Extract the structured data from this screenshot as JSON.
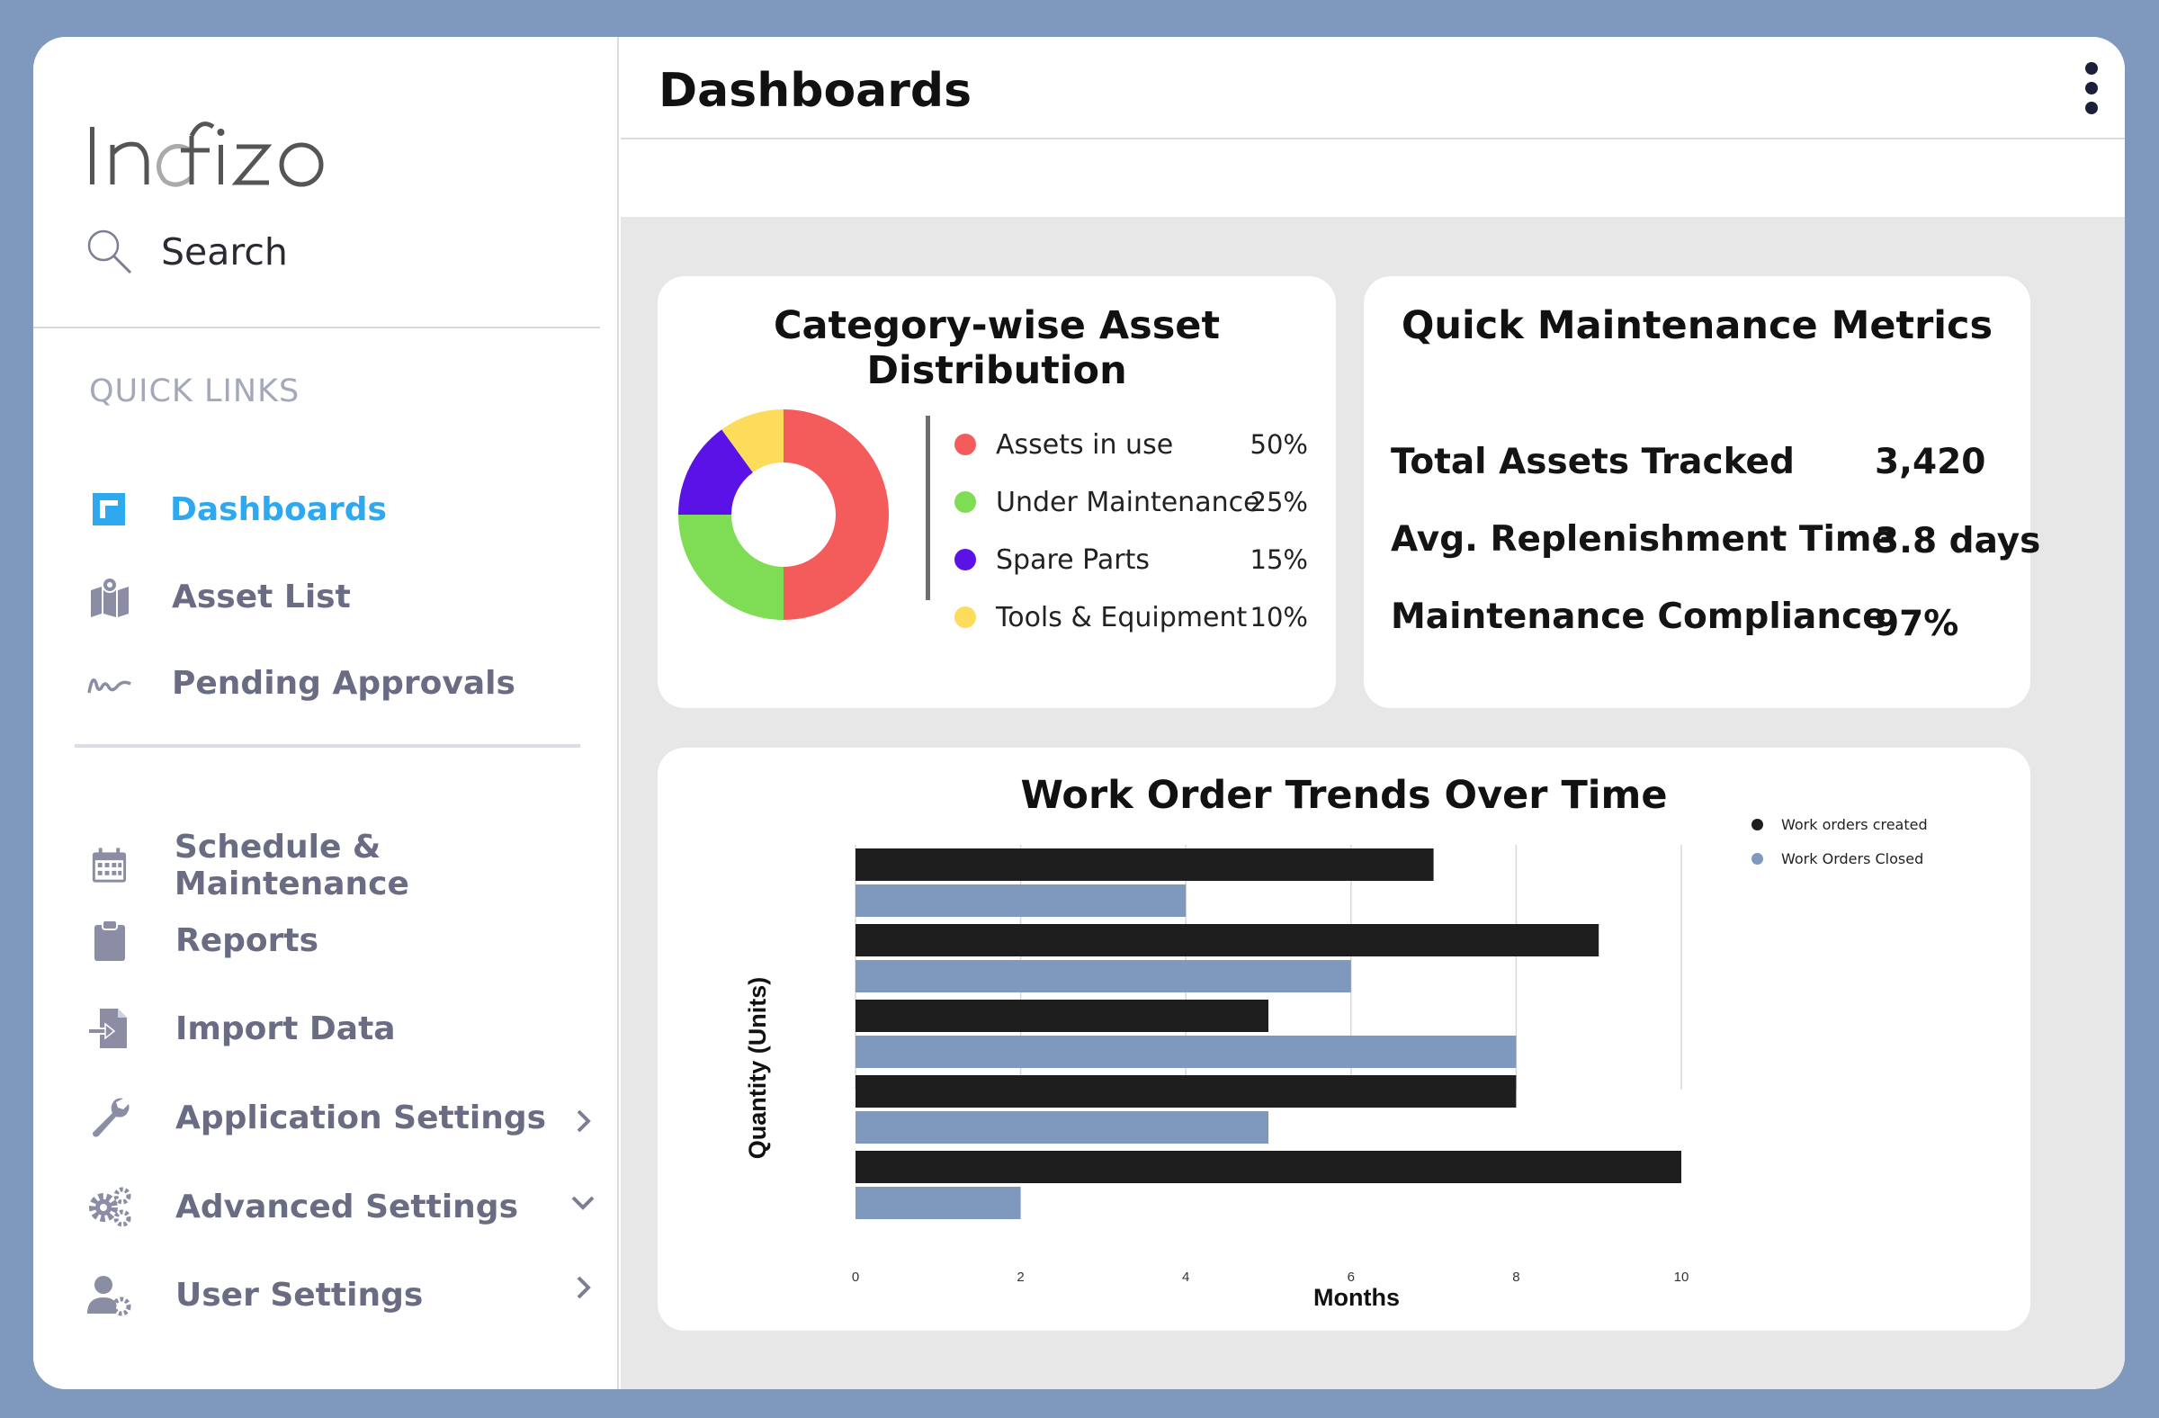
{
  "app": {
    "brand": "Indfizo"
  },
  "sidebar": {
    "search_label": "Search",
    "section_title": "QUICK LINKS",
    "quick_links": [
      {
        "label": "Dashboards",
        "icon": "dashboard-icon",
        "active": true
      },
      {
        "label": "Asset List",
        "icon": "map-icon",
        "active": false
      },
      {
        "label": "Pending Approvals",
        "icon": "signature-icon",
        "active": false
      }
    ],
    "menu": [
      {
        "label": "Schedule & Maintenance",
        "icon": "calendar-icon"
      },
      {
        "label": "Reports",
        "icon": "clipboard-icon"
      },
      {
        "label": "Import Data",
        "icon": "import-file-icon"
      },
      {
        "label": "Application Settings",
        "icon": "wrench-icon",
        "chevron": "right"
      },
      {
        "label": "Advanced Settings",
        "icon": "gears-icon",
        "chevron": "down"
      },
      {
        "label": "User Settings",
        "icon": "user-gear-icon",
        "chevron": "right"
      }
    ]
  },
  "header": {
    "title": "Dashboards"
  },
  "asset_distribution": {
    "title": "Category-wise Asset Distribution",
    "items": [
      {
        "label": "Assets in use",
        "value": "50%",
        "color": "#f45b5b"
      },
      {
        "label": "Under Maintenance",
        "value": "25%",
        "color": "#7fdc55"
      },
      {
        "label": "Spare Parts",
        "value": "15%",
        "color": "#5b12e6"
      },
      {
        "label": "Tools & Equipment",
        "value": "10%",
        "color": "#fddc5c"
      }
    ]
  },
  "metrics": {
    "title": "Quick Maintenance Metrics",
    "rows": [
      {
        "label": "Total Assets Tracked",
        "value": "3,420"
      },
      {
        "label": "Avg. Replenishment Time",
        "value": "3.8 days"
      },
      {
        "label": "Maintenance Compliance",
        "value": "97%"
      }
    ]
  },
  "chart_data": [
    {
      "type": "pie",
      "title": "Category-wise Asset Distribution",
      "categories": [
        "Assets in use",
        "Under Maintenance",
        "Spare Parts",
        "Tools & Equipment"
      ],
      "values": [
        50,
        25,
        15,
        10
      ],
      "colors": [
        "#f45b5b",
        "#7fdc55",
        "#5b12e6",
        "#fddc5c"
      ],
      "donut": true
    },
    {
      "type": "bar",
      "orientation": "horizontal",
      "title": "Work Order Trends Over Time",
      "xlabel": "Months",
      "ylabel": "Quantity (Units)",
      "xlim": [
        0,
        10
      ],
      "xticks": [
        "0",
        "2",
        "4",
        "6",
        "8",
        "10"
      ],
      "grid": true,
      "legend_position": "top-right",
      "series": [
        {
          "name": "Work orders created",
          "color": "#1e1e1e",
          "values": [
            7,
            9,
            5,
            8,
            10
          ]
        },
        {
          "name": "Work Orders Closed",
          "color": "#7f98bd",
          "values": [
            4,
            6,
            8,
            5,
            2
          ]
        }
      ]
    }
  ]
}
